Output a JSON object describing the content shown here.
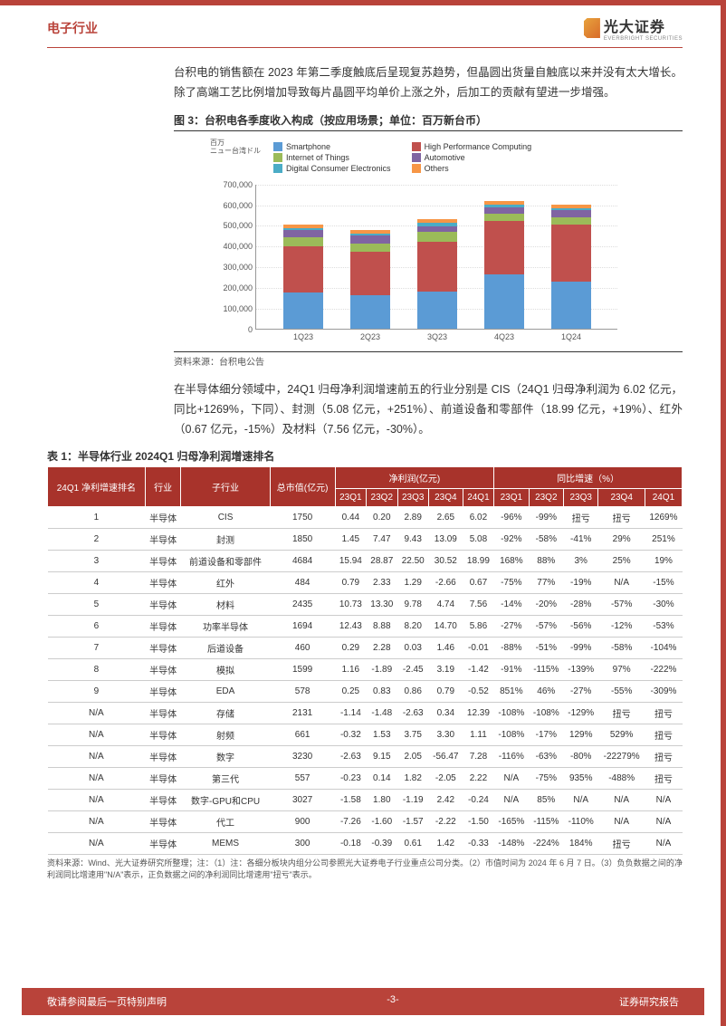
{
  "header": {
    "title": "电子行业",
    "logo_text": "光大证券",
    "logo_sub": "EVERBRIGHT SECURITIES"
  },
  "para1": "台积电的销售额在 2023 年第二季度触底后呈现复苏趋势，但晶圆出货量自触底以来并没有太大增长。除了高端工艺比例增加导致每片晶圆平均单价上涨之外，后加工的贡献有望进一步增强。",
  "fig3": {
    "title": "图 3：台积电各季度收入构成（按应用场景；单位：百万新台币）",
    "ylabel_top": "百万",
    "ylabel_sub": "ニュー台湾ドル",
    "ymax": 700000,
    "ytick_step": 100000,
    "yticks": [
      "0",
      "100,000",
      "200,000",
      "300,000",
      "400,000",
      "500,000",
      "600,000",
      "700,000"
    ],
    "legend": [
      {
        "label": "Smartphone",
        "color": "#5b9bd5"
      },
      {
        "label": "High Performance Computing",
        "color": "#c0504d"
      },
      {
        "label": "Internet of Things",
        "color": "#9bbb59"
      },
      {
        "label": "Automotive",
        "color": "#8064a2"
      },
      {
        "label": "Digital Consumer Electronics",
        "color": "#4bacc6"
      },
      {
        "label": "Others",
        "color": "#f79646"
      }
    ],
    "categories": [
      "1Q23",
      "2Q23",
      "3Q23",
      "4Q23",
      "1Q24"
    ],
    "series": {
      "Smartphone": [
        175000,
        160000,
        180000,
        260000,
        225000
      ],
      "HPC": [
        220000,
        210000,
        240000,
        260000,
        275000
      ],
      "IoT": [
        45000,
        40000,
        45000,
        35000,
        35000
      ],
      "Automotive": [
        35000,
        40000,
        30000,
        30000,
        35000
      ],
      "DCE": [
        10000,
        10000,
        15000,
        12000,
        12000
      ],
      "Others": [
        15000,
        15000,
        20000,
        18000,
        18000
      ]
    },
    "colors": {
      "Smartphone": "#5b9bd5",
      "HPC": "#c0504d",
      "IoT": "#9bbb59",
      "Automotive": "#8064a2",
      "DCE": "#4bacc6",
      "Others": "#f79646"
    },
    "source": "资料来源：台积电公告"
  },
  "para2": "在半导体细分领域中，24Q1 归母净利润增速前五的行业分别是 CIS（24Q1 归母净利润为 6.02 亿元，同比+1269%，下同）、封测（5.08 亿元，+251%）、前道设备和零部件（18.99 亿元，+19%）、红外（0.67 亿元，-15%）及材料（7.56 亿元，-30%）。",
  "table1": {
    "title": "表 1：半导体行业 2024Q1 归母净利润增速排名",
    "headers": {
      "rank": "24Q1 净利增速排名",
      "industry": "行业",
      "sub": "子行业",
      "mcap": "总市值(亿元)",
      "profit_group": "净利润(亿元)",
      "growth_group": "同比增速（%）",
      "q": [
        "23Q1",
        "23Q2",
        "23Q3",
        "23Q4",
        "24Q1"
      ]
    },
    "rows": [
      {
        "rank": "1",
        "ind": "半导体",
        "sub": "CIS",
        "mcap": "1750",
        "p": [
          "0.44",
          "0.20",
          "2.89",
          "2.65",
          "6.02"
        ],
        "g": [
          "-96%",
          "-99%",
          "扭亏",
          "扭亏",
          "1269%"
        ]
      },
      {
        "rank": "2",
        "ind": "半导体",
        "sub": "封测",
        "mcap": "1850",
        "p": [
          "1.45",
          "7.47",
          "9.43",
          "13.09",
          "5.08"
        ],
        "g": [
          "-92%",
          "-58%",
          "-41%",
          "29%",
          "251%"
        ]
      },
      {
        "rank": "3",
        "ind": "半导体",
        "sub": "前道设备和零部件",
        "mcap": "4684",
        "p": [
          "15.94",
          "28.87",
          "22.50",
          "30.52",
          "18.99"
        ],
        "g": [
          "168%",
          "88%",
          "3%",
          "25%",
          "19%"
        ]
      },
      {
        "rank": "4",
        "ind": "半导体",
        "sub": "红外",
        "mcap": "484",
        "p": [
          "0.79",
          "2.33",
          "1.29",
          "-2.66",
          "0.67"
        ],
        "g": [
          "-75%",
          "77%",
          "-19%",
          "N/A",
          "-15%"
        ]
      },
      {
        "rank": "5",
        "ind": "半导体",
        "sub": "材料",
        "mcap": "2435",
        "p": [
          "10.73",
          "13.30",
          "9.78",
          "4.74",
          "7.56"
        ],
        "g": [
          "-14%",
          "-20%",
          "-28%",
          "-57%",
          "-30%"
        ]
      },
      {
        "rank": "6",
        "ind": "半导体",
        "sub": "功率半导体",
        "mcap": "1694",
        "p": [
          "12.43",
          "8.88",
          "8.20",
          "14.70",
          "5.86"
        ],
        "g": [
          "-27%",
          "-57%",
          "-56%",
          "-12%",
          "-53%"
        ]
      },
      {
        "rank": "7",
        "ind": "半导体",
        "sub": "后道设备",
        "mcap": "460",
        "p": [
          "0.29",
          "2.28",
          "0.03",
          "1.46",
          "-0.01"
        ],
        "g": [
          "-88%",
          "-51%",
          "-99%",
          "-58%",
          "-104%"
        ]
      },
      {
        "rank": "8",
        "ind": "半导体",
        "sub": "模拟",
        "mcap": "1599",
        "p": [
          "1.16",
          "-1.89",
          "-2.45",
          "3.19",
          "-1.42"
        ],
        "g": [
          "-91%",
          "-115%",
          "-139%",
          "97%",
          "-222%"
        ]
      },
      {
        "rank": "9",
        "ind": "半导体",
        "sub": "EDA",
        "mcap": "578",
        "p": [
          "0.25",
          "0.83",
          "0.86",
          "0.79",
          "-0.52"
        ],
        "g": [
          "851%",
          "46%",
          "-27%",
          "-55%",
          "-309%"
        ]
      },
      {
        "rank": "N/A",
        "ind": "半导体",
        "sub": "存储",
        "mcap": "2131",
        "p": [
          "-1.14",
          "-1.48",
          "-2.63",
          "0.34",
          "12.39"
        ],
        "g": [
          "-108%",
          "-108%",
          "-129%",
          "扭亏",
          "扭亏"
        ]
      },
      {
        "rank": "N/A",
        "ind": "半导体",
        "sub": "射频",
        "mcap": "661",
        "p": [
          "-0.32",
          "1.53",
          "3.75",
          "3.30",
          "1.11"
        ],
        "g": [
          "-108%",
          "-17%",
          "129%",
          "529%",
          "扭亏"
        ]
      },
      {
        "rank": "N/A",
        "ind": "半导体",
        "sub": "数字",
        "mcap": "3230",
        "p": [
          "-2.63",
          "9.15",
          "2.05",
          "-56.47",
          "7.28"
        ],
        "g": [
          "-116%",
          "-63%",
          "-80%",
          "-22279%",
          "扭亏"
        ]
      },
      {
        "rank": "N/A",
        "ind": "半导体",
        "sub": "第三代",
        "mcap": "557",
        "p": [
          "-0.23",
          "0.14",
          "1.82",
          "-2.05",
          "2.22"
        ],
        "g": [
          "N/A",
          "-75%",
          "935%",
          "-488%",
          "扭亏"
        ]
      },
      {
        "rank": "N/A",
        "ind": "半导体",
        "sub": "数字-GPU和CPU",
        "mcap": "3027",
        "p": [
          "-1.58",
          "1.80",
          "-1.19",
          "2.42",
          "-0.24"
        ],
        "g": [
          "N/A",
          "85%",
          "N/A",
          "N/A",
          "N/A"
        ]
      },
      {
        "rank": "N/A",
        "ind": "半导体",
        "sub": "代工",
        "mcap": "900",
        "p": [
          "-7.26",
          "-1.60",
          "-1.57",
          "-2.22",
          "-1.50"
        ],
        "g": [
          "-165%",
          "-115%",
          "-110%",
          "N/A",
          "N/A"
        ]
      },
      {
        "rank": "N/A",
        "ind": "半导体",
        "sub": "MEMS",
        "mcap": "300",
        "p": [
          "-0.18",
          "-0.39",
          "0.61",
          "1.42",
          "-0.33"
        ],
        "g": [
          "-148%",
          "-224%",
          "184%",
          "扭亏",
          "N/A"
        ]
      }
    ],
    "source": "资料来源：Wind、光大证券研究所整理；注：（1）注：各细分板块内组分公司参照光大证券电子行业重点公司分类。（2）市值时间为 2024 年 6 月 7 日。（3）负负数据之间的净利润同比增速用\"N/A\"表示，正负数据之间的净利润同比增速用\"扭亏\"表示。"
  },
  "footer": {
    "left": "敬请参阅最后一页特别声明",
    "center": "-3-",
    "right": "证券研究报告"
  }
}
